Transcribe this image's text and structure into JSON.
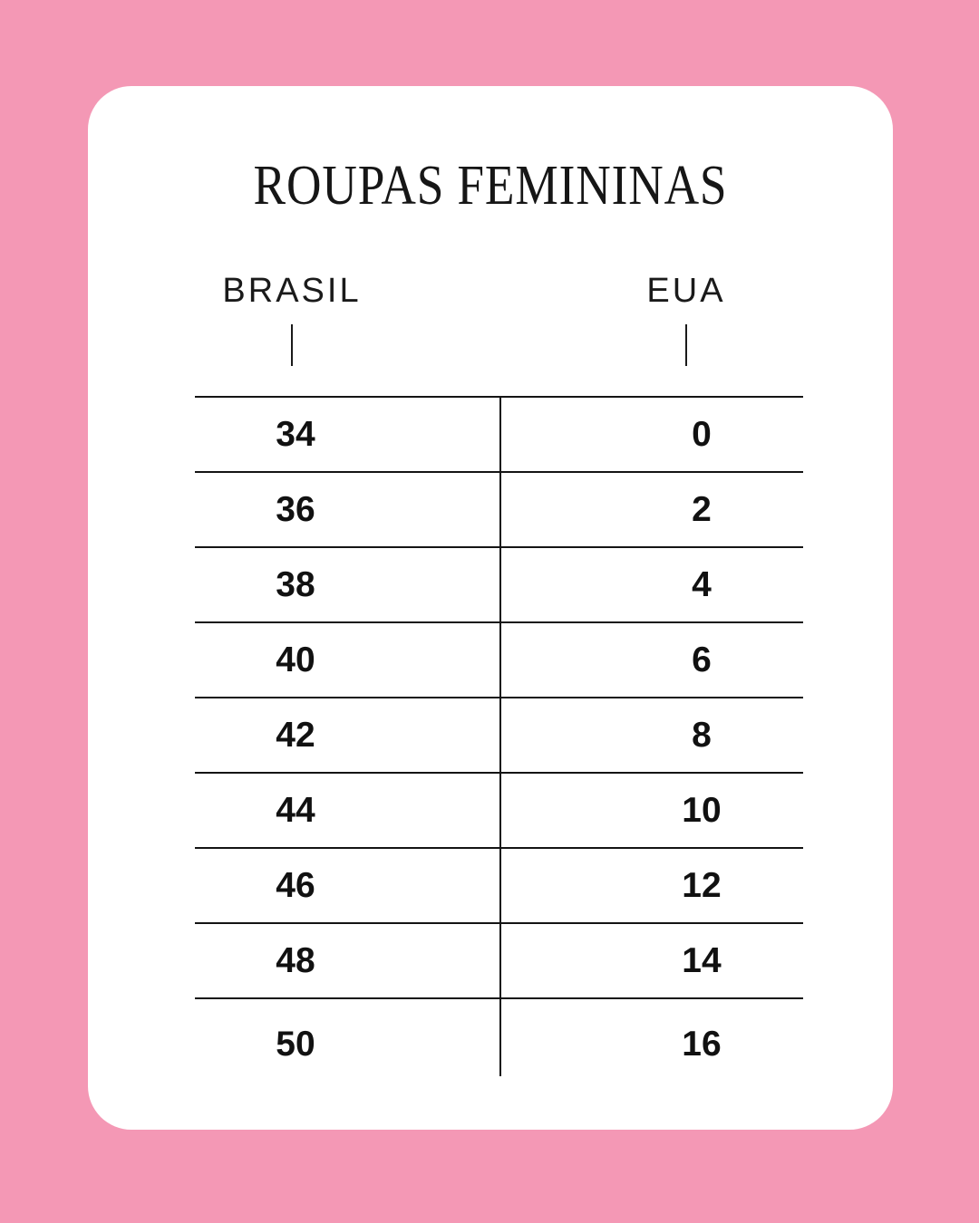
{
  "colors": {
    "background_pink": "#F498B5",
    "card_white": "#FFFFFF",
    "text_black": "#141414"
  },
  "title": "ROUPAS FEMININAS",
  "columns": {
    "left": "BRASIL",
    "right": "EUA"
  },
  "chart_data": {
    "type": "table",
    "title": "ROUPAS FEMININAS",
    "columns": [
      "BRASIL",
      "EUA"
    ],
    "rows": [
      [
        34,
        0
      ],
      [
        36,
        2
      ],
      [
        38,
        4
      ],
      [
        40,
        6
      ],
      [
        42,
        8
      ],
      [
        44,
        10
      ],
      [
        46,
        12
      ],
      [
        48,
        14
      ],
      [
        50,
        16
      ]
    ],
    "layout": {
      "grid": "horizontal rules between rows, single vertical divider between columns",
      "last_row_bottom_border": false
    }
  }
}
